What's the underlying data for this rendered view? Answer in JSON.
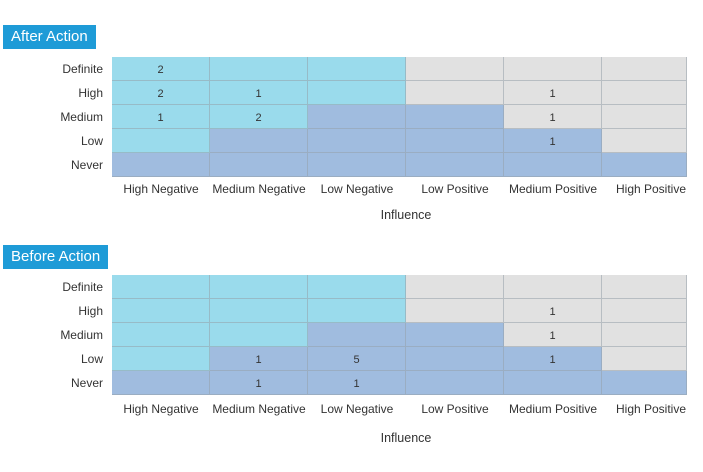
{
  "colors": {
    "cyan": "#9adbec",
    "blue": "#a0bcdf",
    "gray": "#e1e1e1",
    "title_bg": "#1e9bd7"
  },
  "chart_data": [
    {
      "type": "heatmap",
      "title": "After Action",
      "xlabel": "Influence",
      "ylabel": "",
      "x_categories": [
        "High Negative",
        "Medium Negative",
        "Low Negative",
        "Low Positive",
        "Medium Positive",
        "High Positive"
      ],
      "y_categories": [
        "Definite",
        "High",
        "Medium",
        "Low",
        "Never"
      ],
      "zones": [
        [
          "cyan",
          "cyan",
          "cyan",
          "gray",
          "gray",
          "gray"
        ],
        [
          "cyan",
          "cyan",
          "cyan",
          "gray",
          "gray",
          "gray"
        ],
        [
          "cyan",
          "cyan",
          "blue",
          "blue",
          "gray",
          "gray"
        ],
        [
          "cyan",
          "blue",
          "blue",
          "blue",
          "blue",
          "gray"
        ],
        [
          "blue",
          "blue",
          "blue",
          "blue",
          "blue",
          "blue"
        ]
      ],
      "values": [
        [
          "2",
          "",
          "",
          "",
          "",
          ""
        ],
        [
          "2",
          "1",
          "",
          "",
          "1",
          ""
        ],
        [
          "1",
          "2",
          "",
          "",
          "1",
          ""
        ],
        [
          "",
          "",
          "",
          "",
          "1",
          ""
        ],
        [
          "",
          "",
          "",
          "",
          "",
          ""
        ]
      ]
    },
    {
      "type": "heatmap",
      "title": "Before Action",
      "xlabel": "Influence",
      "ylabel": "",
      "x_categories": [
        "High Negative",
        "Medium Negative",
        "Low Negative",
        "Low Positive",
        "Medium Positive",
        "High Positive"
      ],
      "y_categories": [
        "Definite",
        "High",
        "Medium",
        "Low",
        "Never"
      ],
      "zones": [
        [
          "cyan",
          "cyan",
          "cyan",
          "gray",
          "gray",
          "gray"
        ],
        [
          "cyan",
          "cyan",
          "cyan",
          "gray",
          "gray",
          "gray"
        ],
        [
          "cyan",
          "cyan",
          "blue",
          "blue",
          "gray",
          "gray"
        ],
        [
          "cyan",
          "blue",
          "blue",
          "blue",
          "blue",
          "gray"
        ],
        [
          "blue",
          "blue",
          "blue",
          "blue",
          "blue",
          "blue"
        ]
      ],
      "values": [
        [
          "",
          "",
          "",
          "",
          "",
          ""
        ],
        [
          "",
          "",
          "",
          "",
          "1",
          ""
        ],
        [
          "",
          "",
          "",
          "",
          "1",
          ""
        ],
        [
          "",
          "1",
          "5",
          "",
          "1",
          ""
        ],
        [
          "",
          "1",
          "1",
          "",
          "",
          ""
        ]
      ]
    }
  ]
}
